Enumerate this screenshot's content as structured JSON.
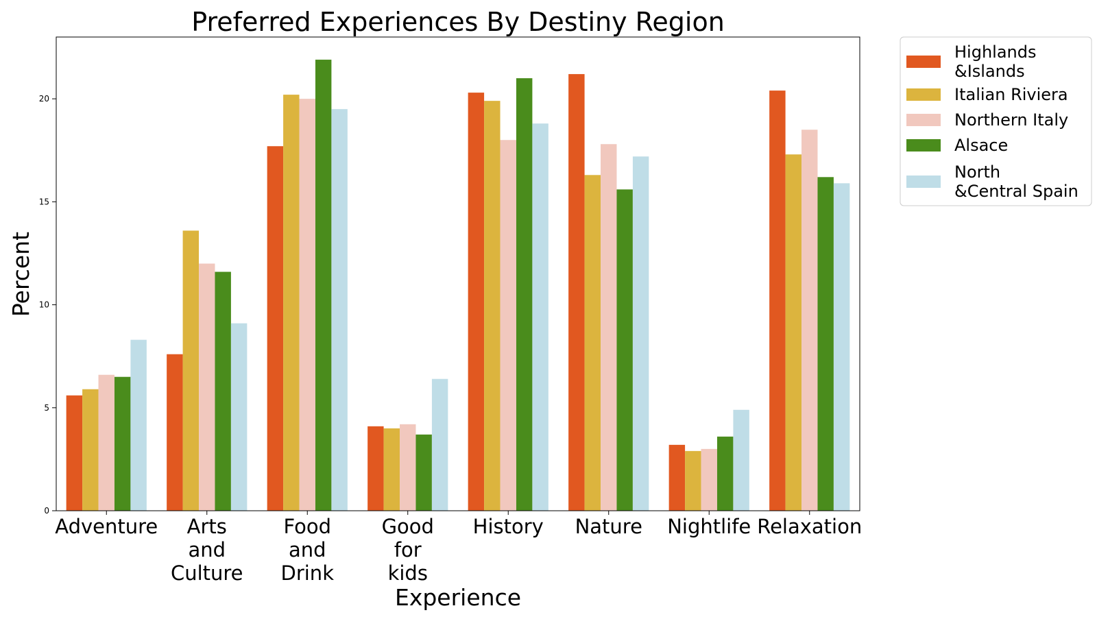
{
  "chart_data": {
    "type": "bar",
    "title": "Preferred Experiences By Destiny Region",
    "xlabel": "Experience",
    "ylabel": "Percent",
    "ylim": [
      0,
      23
    ],
    "yticks": [
      0,
      5,
      10,
      15,
      20
    ],
    "grid": false,
    "legend_position": "outside right, top",
    "categories": [
      [
        "Adventure"
      ],
      [
        "Arts",
        "and",
        "Culture"
      ],
      [
        "Food",
        "and",
        "Drink"
      ],
      [
        "Good",
        "for",
        "kids"
      ],
      [
        "History"
      ],
      [
        "Nature"
      ],
      [
        "Nightlife"
      ],
      [
        "Relaxation"
      ]
    ],
    "series": [
      {
        "name": [
          "Highlands",
          "&Islands"
        ],
        "color": "#e15820",
        "values": [
          5.6,
          7.6,
          17.7,
          4.1,
          20.3,
          21.2,
          3.2,
          20.4
        ]
      },
      {
        "name": [
          "Italian Riviera"
        ],
        "color": "#dcb43e",
        "values": [
          5.9,
          13.6,
          20.2,
          4.0,
          19.9,
          16.3,
          2.9,
          17.3
        ]
      },
      {
        "name": [
          "Northern Italy"
        ],
        "color": "#f1c8be",
        "values": [
          6.6,
          12.0,
          20.0,
          4.2,
          18.0,
          17.8,
          3.0,
          18.5
        ]
      },
      {
        "name": [
          "Alsace"
        ],
        "color": "#4a8c1c",
        "values": [
          6.5,
          11.6,
          21.9,
          3.7,
          21.0,
          15.6,
          3.6,
          16.2
        ]
      },
      {
        "name": [
          "North",
          "&Central Spain"
        ],
        "color": "#bfdde7",
        "values": [
          8.3,
          9.1,
          19.5,
          6.4,
          18.8,
          17.2,
          4.9,
          15.9
        ]
      }
    ]
  }
}
